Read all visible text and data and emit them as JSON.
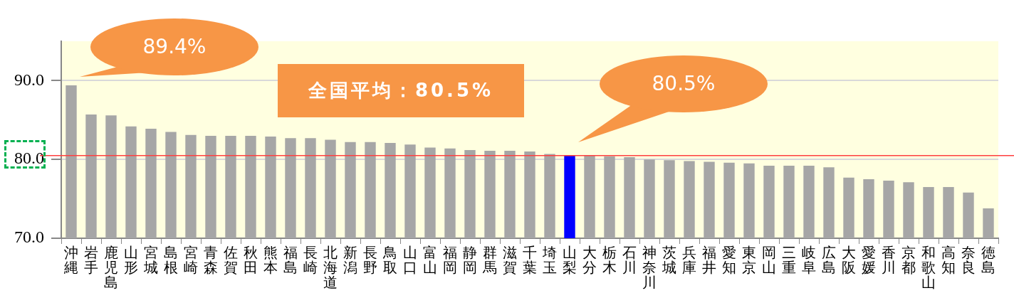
{
  "chart_data": {
    "type": "bar",
    "categories": [
      "沖縄",
      "岩手",
      "鹿児島",
      "山形",
      "宮城",
      "島根",
      "宮崎",
      "青森",
      "佐賀",
      "秋田",
      "熊本",
      "福島",
      "長崎",
      "北海道",
      "新潟",
      "長野",
      "鳥取",
      "山口",
      "富山",
      "福岡",
      "静岡",
      "群馬",
      "滋賀",
      "千葉",
      "埼玉",
      "山梨",
      "大分",
      "栃木",
      "石川",
      "神奈川",
      "茨城",
      "兵庫",
      "福井",
      "愛知",
      "東京",
      "岡山",
      "三重",
      "岐阜",
      "広島",
      "大阪",
      "愛媛",
      "香川",
      "京都",
      "和歌山",
      "高知",
      "奈良",
      "徳島"
    ],
    "values": [
      89.4,
      85.7,
      85.6,
      84.2,
      83.9,
      83.5,
      83.1,
      83.0,
      83.0,
      83.0,
      82.9,
      82.7,
      82.7,
      82.5,
      82.2,
      82.2,
      82.1,
      81.9,
      81.5,
      81.4,
      81.2,
      81.1,
      81.1,
      81.0,
      80.7,
      80.5,
      80.5,
      80.4,
      80.3,
      80.0,
      79.9,
      79.8,
      79.7,
      79.6,
      79.5,
      79.2,
      79.2,
      79.2,
      79.0,
      77.7,
      77.5,
      77.3,
      77.1,
      76.5,
      76.5,
      75.8,
      73.8
    ],
    "colors": [
      "#a6a6a6",
      "#a6a6a6",
      "#a6a6a6",
      "#a6a6a6",
      "#a6a6a6",
      "#a6a6a6",
      "#a6a6a6",
      "#a6a6a6",
      "#a6a6a6",
      "#a6a6a6",
      "#a6a6a6",
      "#a6a6a6",
      "#a6a6a6",
      "#a6a6a6",
      "#a6a6a6",
      "#a6a6a6",
      "#a6a6a6",
      "#a6a6a6",
      "#a6a6a6",
      "#a6a6a6",
      "#a6a6a6",
      "#a6a6a6",
      "#a6a6a6",
      "#a6a6a6",
      "#a6a6a6",
      "#0000ff",
      "#a6a6a6",
      "#a6a6a6",
      "#a6a6a6",
      "#a6a6a6",
      "#a6a6a6",
      "#a6a6a6",
      "#a6a6a6",
      "#a6a6a6",
      "#a6a6a6",
      "#a6a6a6",
      "#a6a6a6",
      "#a6a6a6",
      "#a6a6a6",
      "#a6a6a6",
      "#a6a6a6",
      "#a6a6a6",
      "#a6a6a6",
      "#a6a6a6",
      "#a6a6a6",
      "#a6a6a6",
      "#a6a6a6"
    ],
    "ylim": [
      70,
      95
    ],
    "yticks": [
      {
        "value": 70,
        "label": "70.0"
      },
      {
        "value": 80,
        "label": "80.0"
      },
      {
        "value": 90,
        "label": "90.0"
      }
    ],
    "grid": "y",
    "legend": false,
    "ref_lines": [
      {
        "axis": "y",
        "value": 80.5,
        "color": "#ff4040"
      }
    ],
    "annotations": [
      "89.4%",
      "全国平均：80.5%",
      "80.5%"
    ]
  }
}
